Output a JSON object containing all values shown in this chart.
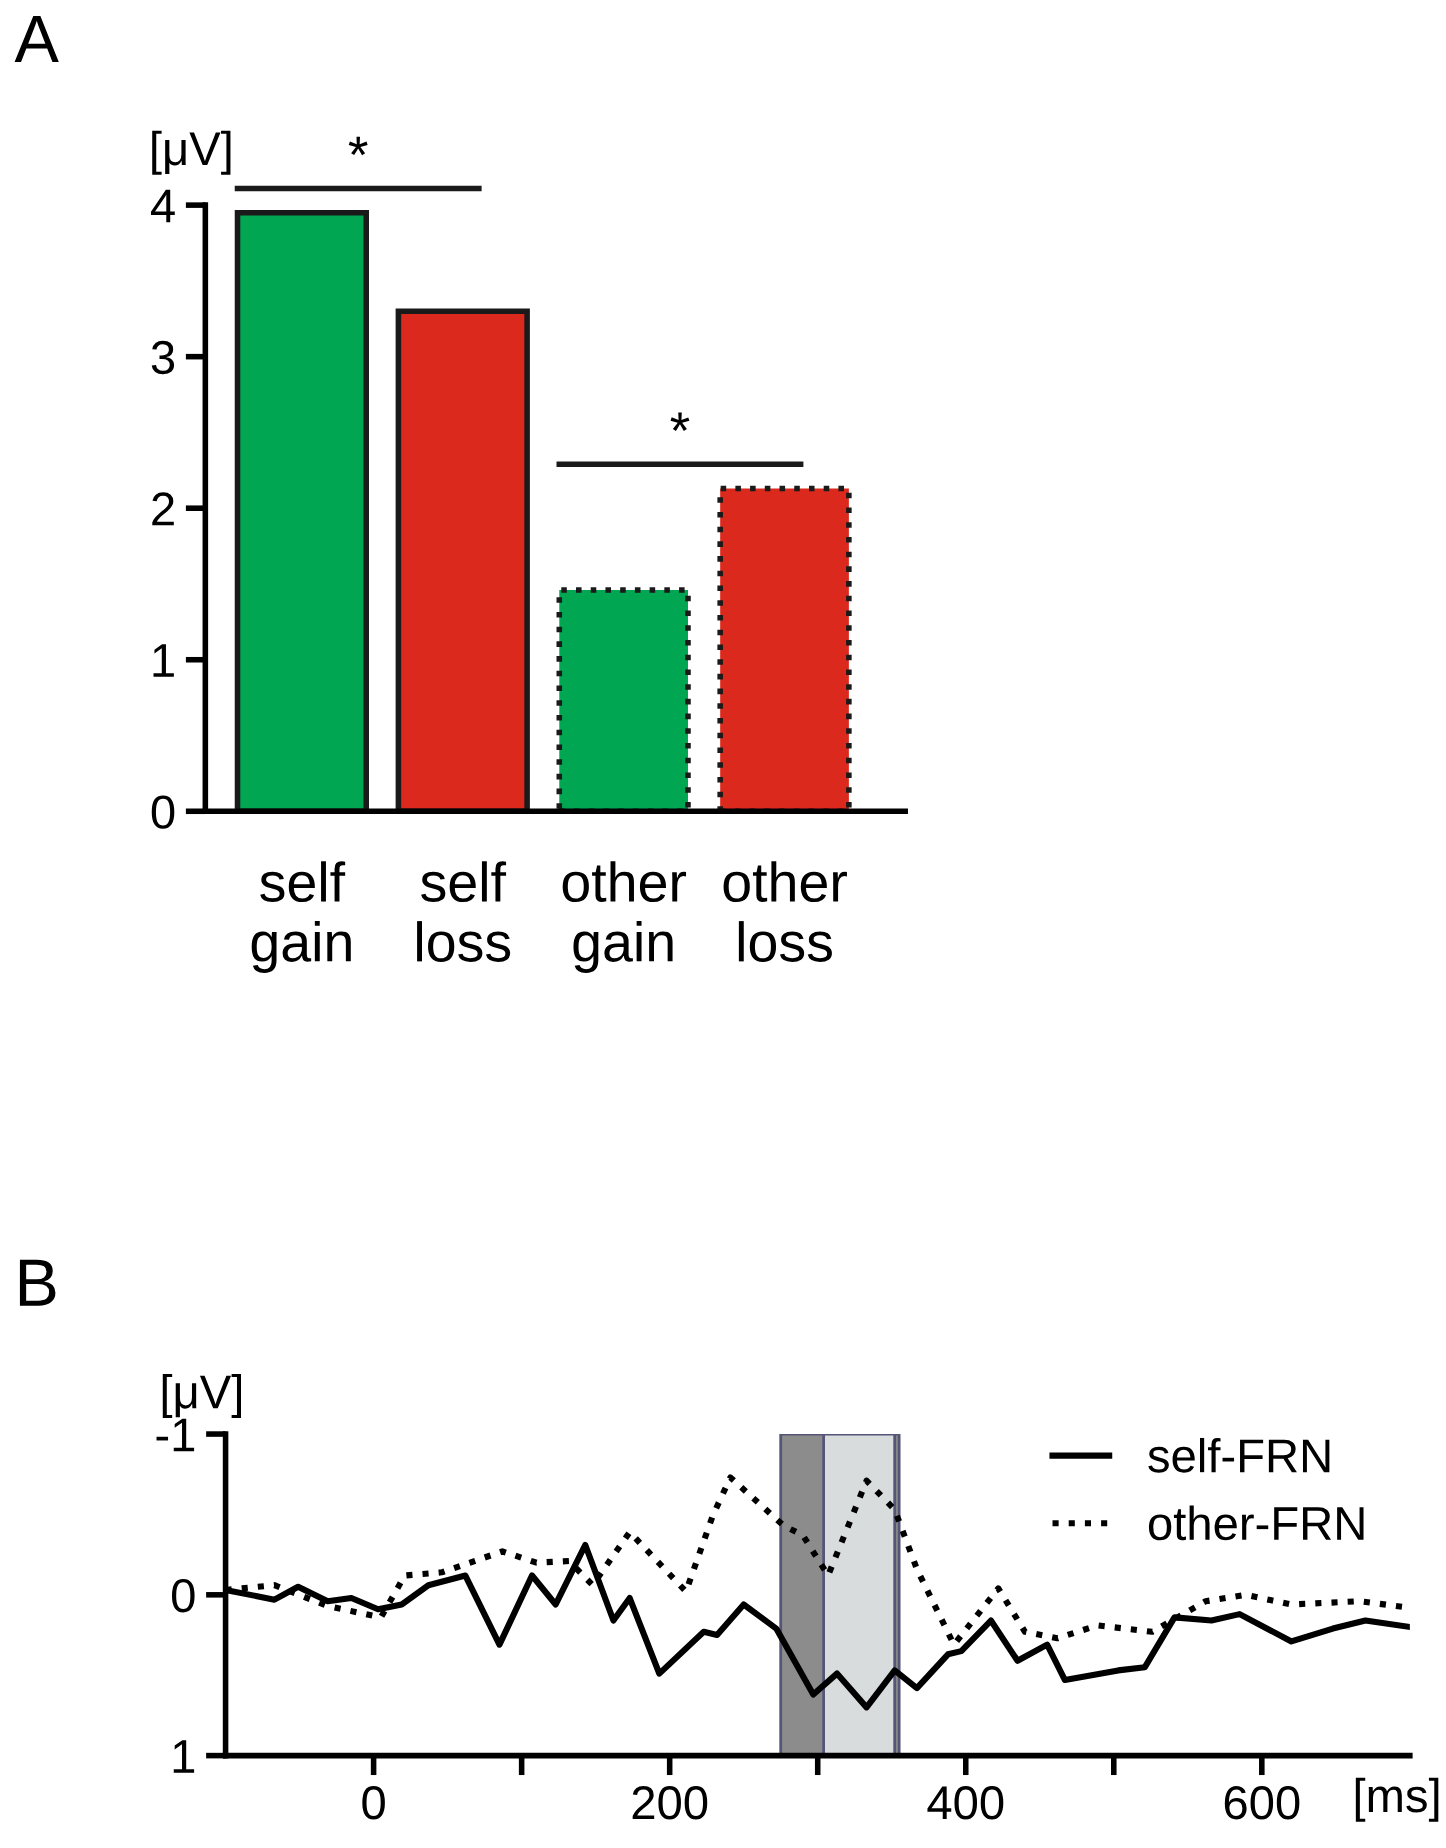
{
  "chart_data": [
    {
      "type": "bar",
      "title": "A",
      "ylabel": "[μV]",
      "categories": [
        "self\ngain",
        "self\nloss",
        "other\ngain",
        "other\nloss"
      ],
      "series": [
        {
          "colors": [
            "#00a651",
            "#dc291e",
            "#00a651",
            "#dc291e"
          ],
          "values": [
            3.95,
            3.3,
            null,
            null
          ],
          "line_style": "solid"
        },
        {
          "colors": [
            "#00a651",
            "#dc291e",
            "#00a651",
            "#dc291e"
          ],
          "values": [
            null,
            null,
            1.46,
            2.13
          ],
          "line_style": "dotted"
        }
      ],
      "ylim": [
        0,
        4
      ],
      "yticks": [
        0,
        1,
        2,
        3,
        4
      ],
      "annotations": [
        "*",
        "*"
      ],
      "grid": false
    },
    {
      "type": "line",
      "title": "B",
      "ylabel": "[μV]",
      "xlabel": "[ms]",
      "xlim": [
        -100,
        700
      ],
      "xticks": [
        0,
        {
          "value": 100,
          "label": null
        },
        200,
        {
          "value": 300,
          "label": null
        },
        400,
        {
          "value": 500,
          "label": null
        },
        600
      ],
      "ylim": [
        1,
        -1
      ],
      "yticks": [
        -1,
        0,
        1
      ],
      "bands": [
        {
          "axis": "x",
          "from": 275,
          "to": 355,
          "color": "#8c8c8c"
        },
        {
          "axis": "x",
          "from": 304,
          "to": 352,
          "color": "#d9dcdc"
        }
      ],
      "legend": "top right",
      "grid": false,
      "series": [
        {
          "name": "self-FRN",
          "color": "#000000",
          "line_style": "solid",
          "x": [
            -100,
            -67,
            -51,
            -31,
            -15,
            3,
            19,
            37,
            62,
            85,
            107,
            123,
            143,
            162,
            173,
            193,
            223,
            232,
            250,
            272,
            297,
            313,
            333,
            352,
            367,
            388,
            397,
            417,
            435,
            455,
            467,
            503,
            521,
            541,
            566,
            585,
            620,
            648,
            670,
            700
          ],
          "values": [
            -0.03,
            0.03,
            -0.05,
            0.04,
            0.02,
            0.09,
            0.06,
            -0.06,
            -0.12,
            0.31,
            -0.12,
            0.06,
            -0.31,
            0.16,
            0.02,
            0.49,
            0.23,
            0.25,
            0.06,
            0.21,
            0.62,
            0.49,
            0.7,
            0.47,
            0.58,
            0.37,
            0.35,
            0.16,
            0.41,
            0.31,
            0.53,
            0.47,
            0.45,
            0.14,
            0.16,
            0.12,
            0.29,
            0.21,
            0.16,
            0.2
          ]
        },
        {
          "name": "other-FRN",
          "color": "#000000",
          "line_style": "dotted",
          "x": [
            -100,
            -67,
            -31,
            5,
            21,
            46,
            87,
            110,
            132,
            148,
            173,
            211,
            229,
            241,
            277,
            290,
            307,
            333,
            352,
            367,
            392,
            422,
            440,
            462,
            489,
            526,
            562,
            589,
            620,
            666,
            700
          ],
          "values": [
            -0.03,
            -0.06,
            0.07,
            0.14,
            -0.12,
            -0.14,
            -0.27,
            -0.2,
            -0.21,
            -0.06,
            -0.39,
            -0.02,
            -0.49,
            -0.73,
            -0.43,
            -0.37,
            -0.12,
            -0.71,
            -0.53,
            -0.16,
            0.31,
            -0.04,
            0.23,
            0.27,
            0.19,
            0.23,
            0.04,
            0.0,
            0.06,
            0.04,
            0.08
          ]
        }
      ]
    }
  ]
}
